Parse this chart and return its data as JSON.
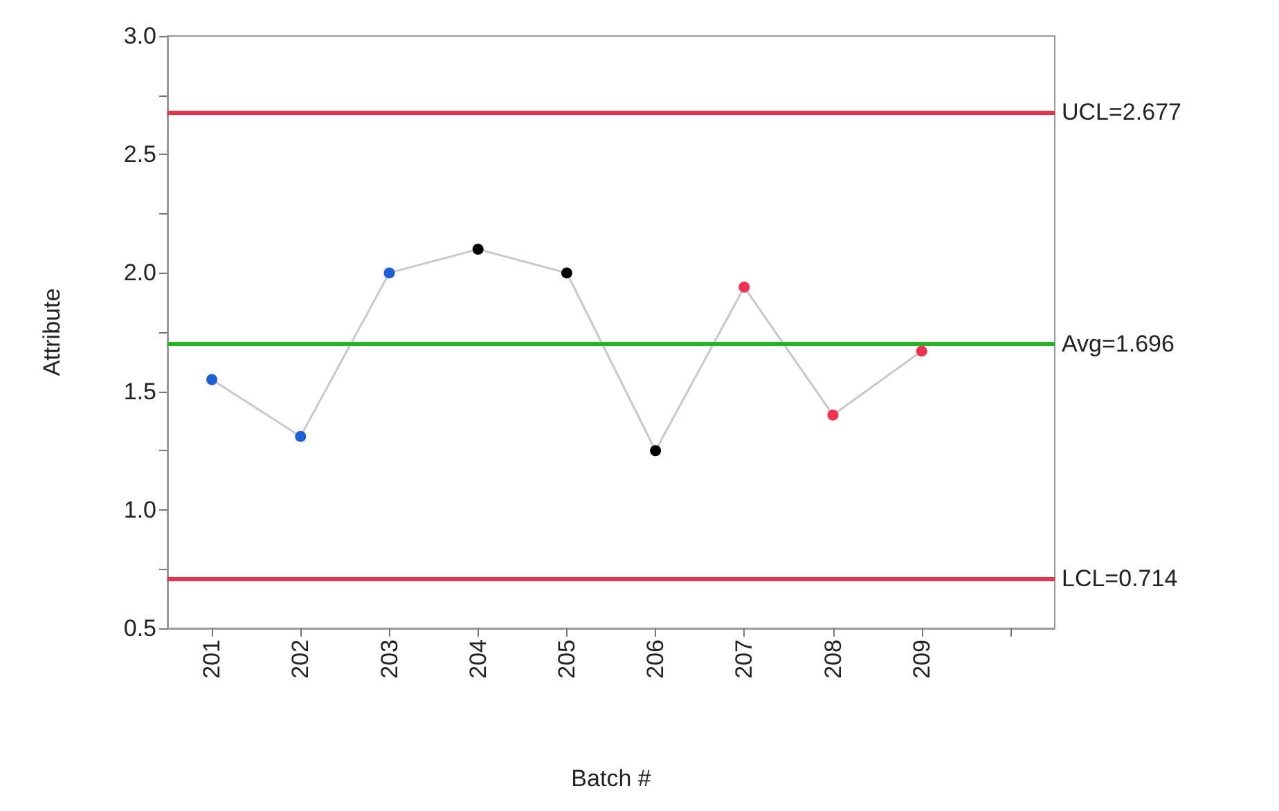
{
  "chart_data": {
    "type": "line",
    "xlabel": "Batch #",
    "ylabel": "Attribute",
    "categories": [
      "201",
      "202",
      "203",
      "204",
      "205",
      "206",
      "207",
      "208",
      "209",
      null
    ],
    "series": [
      {
        "color": "#c8c8c8",
        "values": [
          1.55,
          1.31,
          2.0,
          2.1,
          2.0,
          1.25,
          1.94,
          1.4,
          1.67,
          null
        ],
        "colors": [
          "#1f5fd6",
          "#1f5fd6",
          "#1f5fd6",
          "#000000",
          "#000000",
          "#000000",
          "#ee3350",
          "#ee3350",
          "#ee3350",
          null
        ]
      }
    ],
    "ylim": [
      0.5,
      3.0
    ],
    "yticks": [
      {
        "value": 0.5,
        "label": "0.5"
      },
      {
        "value": 0.75,
        "label": null
      },
      {
        "value": 1,
        "label": "1.0"
      },
      {
        "value": 1.25,
        "label": null
      },
      {
        "value": 1.5,
        "label": "1.5"
      },
      {
        "value": 1.75,
        "label": null
      },
      {
        "value": 2,
        "label": "2.0"
      },
      {
        "value": 2.25,
        "label": null
      },
      {
        "value": 2.5,
        "label": "2.5"
      },
      {
        "value": 2.75,
        "label": null
      },
      {
        "value": 3,
        "label": "3.0"
      }
    ],
    "ref_lines": [
      {
        "axis": "y",
        "value": 2.677,
        "label": "UCL=2.677",
        "color": "#e8334a"
      },
      {
        "axis": "y",
        "value": 1.696,
        "label": "Avg=1.696",
        "color": "#22b422"
      },
      {
        "axis": "y",
        "value": 0.714,
        "label": "LCL=0.714",
        "color": "#e8334a"
      }
    ],
    "grid": false,
    "marker": "circle",
    "line_style": "solid"
  }
}
